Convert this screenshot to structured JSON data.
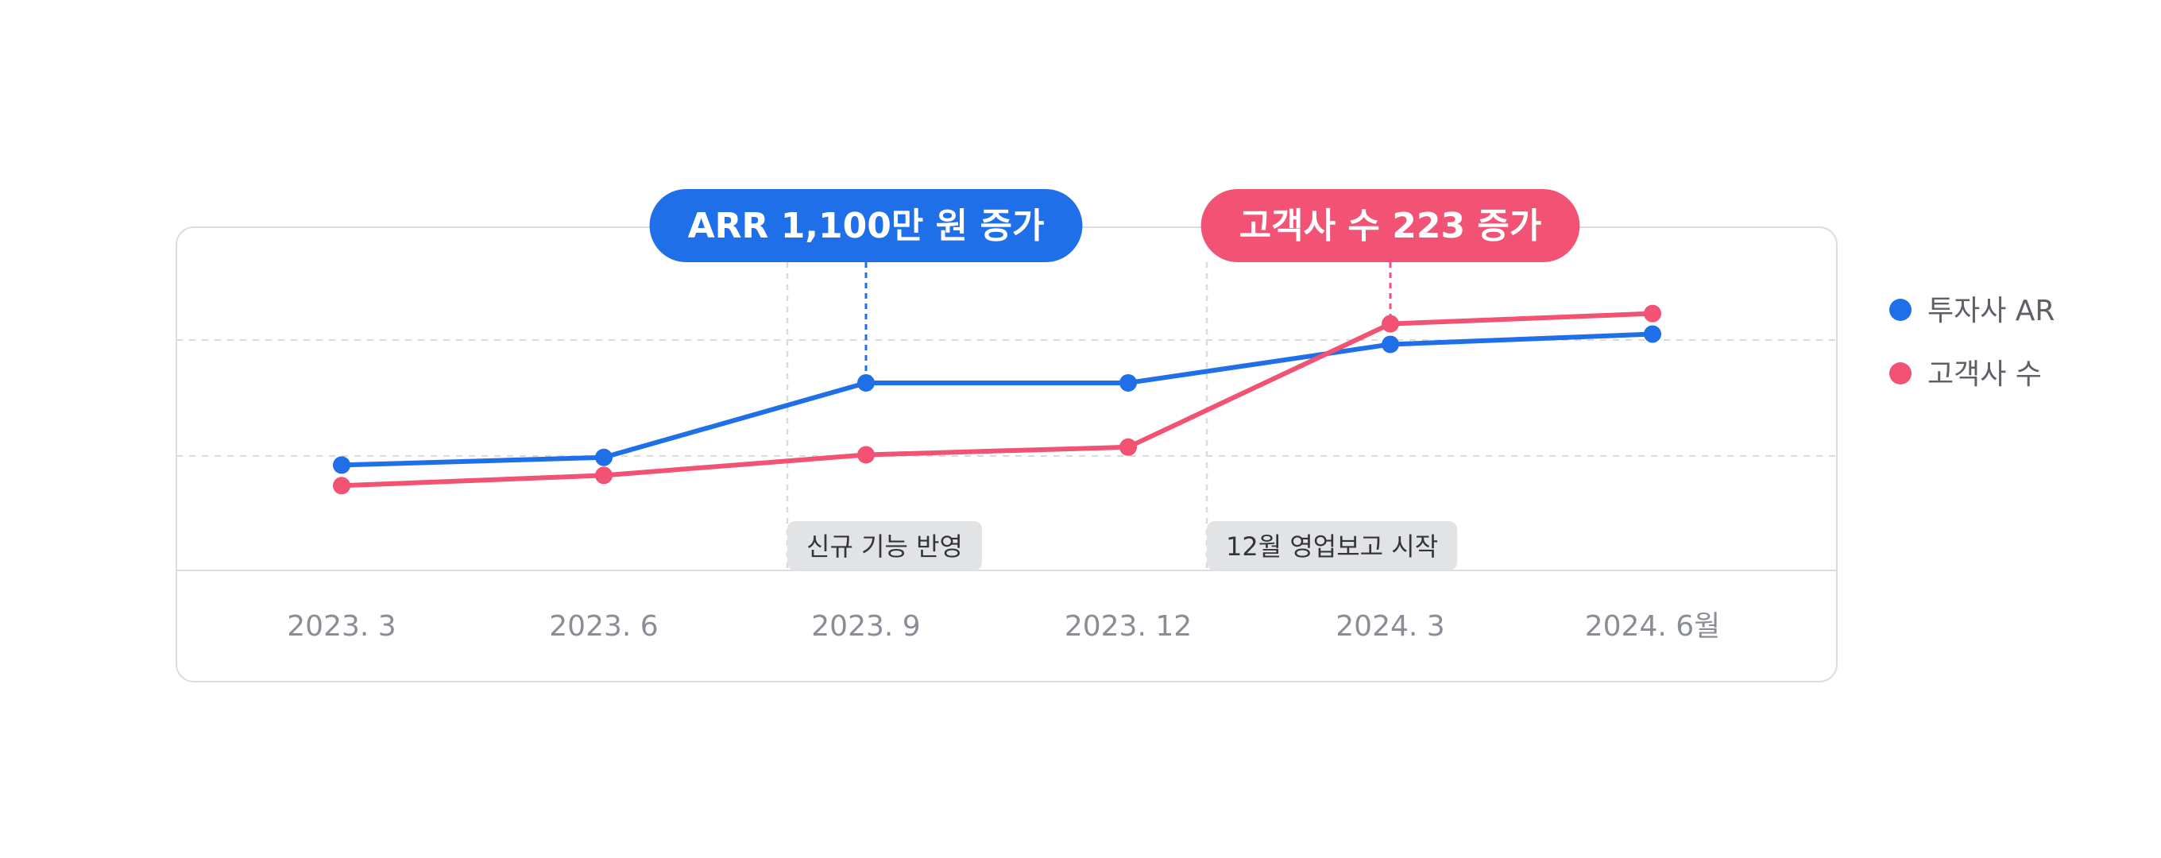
{
  "chart_data": {
    "type": "line",
    "categories": [
      "2023. 3",
      "2023. 6",
      "2023. 9",
      "2023. 12",
      "2024. 3",
      "2024. 6월"
    ],
    "series": [
      {
        "name": "투자사 AR",
        "color": "#1f6fe8",
        "values": [
          41,
          44,
          73,
          73,
          88,
          92
        ]
      },
      {
        "name": "고객사 수",
        "color": "#f25274",
        "values": [
          33,
          37,
          45,
          48,
          96,
          100
        ]
      }
    ],
    "ylim": [
      0,
      120
    ],
    "grid": true,
    "legend_position": "right",
    "annotations": [
      {
        "type": "callout",
        "text": "ARR 1,100만 원 증가",
        "category": "2023. 9",
        "series": 0,
        "color": "#1f6fe8"
      },
      {
        "type": "callout",
        "text": "고객사 수 223 증가",
        "category": "2024. 3",
        "series": 1,
        "color": "#f25274"
      }
    ],
    "events": [
      {
        "label": "신규 기능 반영",
        "position": 1.7
      },
      {
        "label": "12월 영업보고 시작",
        "position": 3.3
      }
    ]
  }
}
